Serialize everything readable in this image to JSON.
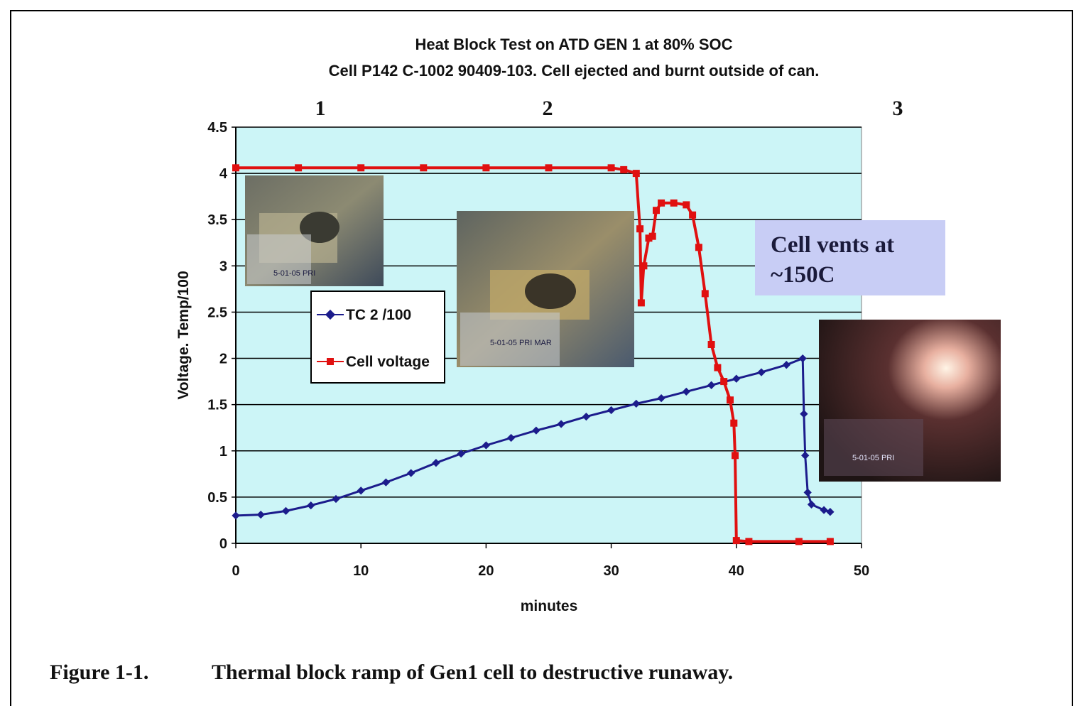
{
  "chart_data": {
    "type": "line",
    "title": "Heat Block Test on ATD GEN 1 at 80% SOC",
    "subtitle": "Cell P142 C-1002 90409-103. Cell ejected and burnt outside of can.",
    "xlabel": "minutes",
    "ylabel": "Voltage.  Temp/100",
    "xlim": [
      0,
      50
    ],
    "ylim": [
      0,
      4.5
    ],
    "xticks": [
      "0",
      "10",
      "20",
      "30",
      "40",
      "50"
    ],
    "yticks": [
      "0",
      "0.5",
      "1",
      "1.5",
      "2",
      "2.5",
      "3",
      "3.5",
      "4",
      "4.5"
    ],
    "grid": "horizontal",
    "legend_position": "left-middle",
    "region_labels": [
      "1",
      "2",
      "3"
    ],
    "series": [
      {
        "name": "TC 2 /100",
        "color": "#1c1c8c",
        "marker": "diamond",
        "x": [
          0,
          2,
          4,
          6,
          8,
          10,
          12,
          14,
          16,
          18,
          20,
          22,
          24,
          26,
          28,
          30,
          32,
          34,
          36,
          38,
          40,
          42,
          44,
          45.3,
          45.4,
          45.5,
          45.7,
          46,
          47,
          47.5
        ],
        "y": [
          0.3,
          0.31,
          0.35,
          0.41,
          0.48,
          0.57,
          0.66,
          0.76,
          0.87,
          0.97,
          1.06,
          1.14,
          1.22,
          1.29,
          1.37,
          1.44,
          1.51,
          1.57,
          1.64,
          1.71,
          1.78,
          1.85,
          1.93,
          2.0,
          1.4,
          0.95,
          0.55,
          0.42,
          0.36,
          0.34
        ]
      },
      {
        "name": "Cell voltage",
        "color": "#e01010",
        "marker": "square",
        "x": [
          0,
          5,
          10,
          15,
          20,
          25,
          30,
          31,
          32,
          32.3,
          32.4,
          32.6,
          33,
          33.3,
          33.6,
          34,
          35,
          36,
          36.5,
          37,
          37.5,
          38,
          38.5,
          39,
          39.5,
          39.8,
          39.9,
          40,
          41,
          45,
          47.5
        ],
        "y": [
          4.06,
          4.06,
          4.06,
          4.06,
          4.06,
          4.06,
          4.06,
          4.04,
          4.0,
          3.4,
          2.6,
          3.0,
          3.3,
          3.32,
          3.6,
          3.68,
          3.68,
          3.66,
          3.55,
          3.2,
          2.7,
          2.15,
          1.9,
          1.75,
          1.55,
          1.3,
          0.95,
          0.03,
          0.02,
          0.02,
          0.02
        ]
      }
    ]
  },
  "annotation": {
    "line1": "Cell vents at",
    "line2": "~150C"
  },
  "photo_labels": {
    "photo1": "5-01-05 PRI",
    "photo2": "5-01-05 PRI MAR",
    "photo3": "5-01-05 PRI"
  },
  "caption": {
    "label": "Figure 1-1.",
    "text": "Thermal block ramp of Gen1 cell to destructive runaway."
  },
  "colors": {
    "plot_background": "#ccf5f7",
    "annotation_background": "#c8cdf5"
  }
}
